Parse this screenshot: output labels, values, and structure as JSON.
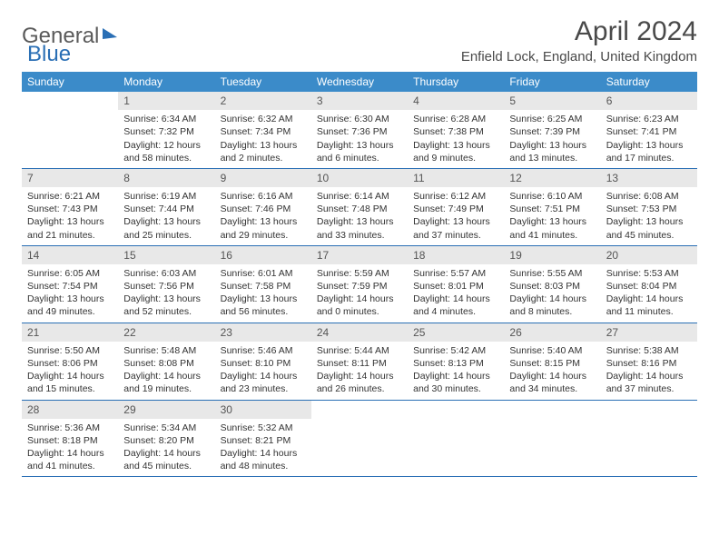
{
  "logo": {
    "part1": "General",
    "part2": "Blue"
  },
  "title": "April 2024",
  "location": "Enfield Lock, England, United Kingdom",
  "colors": {
    "header_bg": "#3b8bc9",
    "header_text": "#ffffff",
    "daynum_bg": "#e8e8e8",
    "row_border": "#2a6fb5",
    "logo_text": "#5a5a5a",
    "logo_blue": "#2a6fb5"
  },
  "day_headers": [
    "Sunday",
    "Monday",
    "Tuesday",
    "Wednesday",
    "Thursday",
    "Friday",
    "Saturday"
  ],
  "weeks": [
    [
      {
        "num": "",
        "lines": []
      },
      {
        "num": "1",
        "lines": [
          "Sunrise: 6:34 AM",
          "Sunset: 7:32 PM",
          "Daylight: 12 hours",
          "and 58 minutes."
        ]
      },
      {
        "num": "2",
        "lines": [
          "Sunrise: 6:32 AM",
          "Sunset: 7:34 PM",
          "Daylight: 13 hours",
          "and 2 minutes."
        ]
      },
      {
        "num": "3",
        "lines": [
          "Sunrise: 6:30 AM",
          "Sunset: 7:36 PM",
          "Daylight: 13 hours",
          "and 6 minutes."
        ]
      },
      {
        "num": "4",
        "lines": [
          "Sunrise: 6:28 AM",
          "Sunset: 7:38 PM",
          "Daylight: 13 hours",
          "and 9 minutes."
        ]
      },
      {
        "num": "5",
        "lines": [
          "Sunrise: 6:25 AM",
          "Sunset: 7:39 PM",
          "Daylight: 13 hours",
          "and 13 minutes."
        ]
      },
      {
        "num": "6",
        "lines": [
          "Sunrise: 6:23 AM",
          "Sunset: 7:41 PM",
          "Daylight: 13 hours",
          "and 17 minutes."
        ]
      }
    ],
    [
      {
        "num": "7",
        "lines": [
          "Sunrise: 6:21 AM",
          "Sunset: 7:43 PM",
          "Daylight: 13 hours",
          "and 21 minutes."
        ]
      },
      {
        "num": "8",
        "lines": [
          "Sunrise: 6:19 AM",
          "Sunset: 7:44 PM",
          "Daylight: 13 hours",
          "and 25 minutes."
        ]
      },
      {
        "num": "9",
        "lines": [
          "Sunrise: 6:16 AM",
          "Sunset: 7:46 PM",
          "Daylight: 13 hours",
          "and 29 minutes."
        ]
      },
      {
        "num": "10",
        "lines": [
          "Sunrise: 6:14 AM",
          "Sunset: 7:48 PM",
          "Daylight: 13 hours",
          "and 33 minutes."
        ]
      },
      {
        "num": "11",
        "lines": [
          "Sunrise: 6:12 AM",
          "Sunset: 7:49 PM",
          "Daylight: 13 hours",
          "and 37 minutes."
        ]
      },
      {
        "num": "12",
        "lines": [
          "Sunrise: 6:10 AM",
          "Sunset: 7:51 PM",
          "Daylight: 13 hours",
          "and 41 minutes."
        ]
      },
      {
        "num": "13",
        "lines": [
          "Sunrise: 6:08 AM",
          "Sunset: 7:53 PM",
          "Daylight: 13 hours",
          "and 45 minutes."
        ]
      }
    ],
    [
      {
        "num": "14",
        "lines": [
          "Sunrise: 6:05 AM",
          "Sunset: 7:54 PM",
          "Daylight: 13 hours",
          "and 49 minutes."
        ]
      },
      {
        "num": "15",
        "lines": [
          "Sunrise: 6:03 AM",
          "Sunset: 7:56 PM",
          "Daylight: 13 hours",
          "and 52 minutes."
        ]
      },
      {
        "num": "16",
        "lines": [
          "Sunrise: 6:01 AM",
          "Sunset: 7:58 PM",
          "Daylight: 13 hours",
          "and 56 minutes."
        ]
      },
      {
        "num": "17",
        "lines": [
          "Sunrise: 5:59 AM",
          "Sunset: 7:59 PM",
          "Daylight: 14 hours",
          "and 0 minutes."
        ]
      },
      {
        "num": "18",
        "lines": [
          "Sunrise: 5:57 AM",
          "Sunset: 8:01 PM",
          "Daylight: 14 hours",
          "and 4 minutes."
        ]
      },
      {
        "num": "19",
        "lines": [
          "Sunrise: 5:55 AM",
          "Sunset: 8:03 PM",
          "Daylight: 14 hours",
          "and 8 minutes."
        ]
      },
      {
        "num": "20",
        "lines": [
          "Sunrise: 5:53 AM",
          "Sunset: 8:04 PM",
          "Daylight: 14 hours",
          "and 11 minutes."
        ]
      }
    ],
    [
      {
        "num": "21",
        "lines": [
          "Sunrise: 5:50 AM",
          "Sunset: 8:06 PM",
          "Daylight: 14 hours",
          "and 15 minutes."
        ]
      },
      {
        "num": "22",
        "lines": [
          "Sunrise: 5:48 AM",
          "Sunset: 8:08 PM",
          "Daylight: 14 hours",
          "and 19 minutes."
        ]
      },
      {
        "num": "23",
        "lines": [
          "Sunrise: 5:46 AM",
          "Sunset: 8:10 PM",
          "Daylight: 14 hours",
          "and 23 minutes."
        ]
      },
      {
        "num": "24",
        "lines": [
          "Sunrise: 5:44 AM",
          "Sunset: 8:11 PM",
          "Daylight: 14 hours",
          "and 26 minutes."
        ]
      },
      {
        "num": "25",
        "lines": [
          "Sunrise: 5:42 AM",
          "Sunset: 8:13 PM",
          "Daylight: 14 hours",
          "and 30 minutes."
        ]
      },
      {
        "num": "26",
        "lines": [
          "Sunrise: 5:40 AM",
          "Sunset: 8:15 PM",
          "Daylight: 14 hours",
          "and 34 minutes."
        ]
      },
      {
        "num": "27",
        "lines": [
          "Sunrise: 5:38 AM",
          "Sunset: 8:16 PM",
          "Daylight: 14 hours",
          "and 37 minutes."
        ]
      }
    ],
    [
      {
        "num": "28",
        "lines": [
          "Sunrise: 5:36 AM",
          "Sunset: 8:18 PM",
          "Daylight: 14 hours",
          "and 41 minutes."
        ]
      },
      {
        "num": "29",
        "lines": [
          "Sunrise: 5:34 AM",
          "Sunset: 8:20 PM",
          "Daylight: 14 hours",
          "and 45 minutes."
        ]
      },
      {
        "num": "30",
        "lines": [
          "Sunrise: 5:32 AM",
          "Sunset: 8:21 PM",
          "Daylight: 14 hours",
          "and 48 minutes."
        ]
      },
      {
        "num": "",
        "lines": []
      },
      {
        "num": "",
        "lines": []
      },
      {
        "num": "",
        "lines": []
      },
      {
        "num": "",
        "lines": []
      }
    ]
  ]
}
